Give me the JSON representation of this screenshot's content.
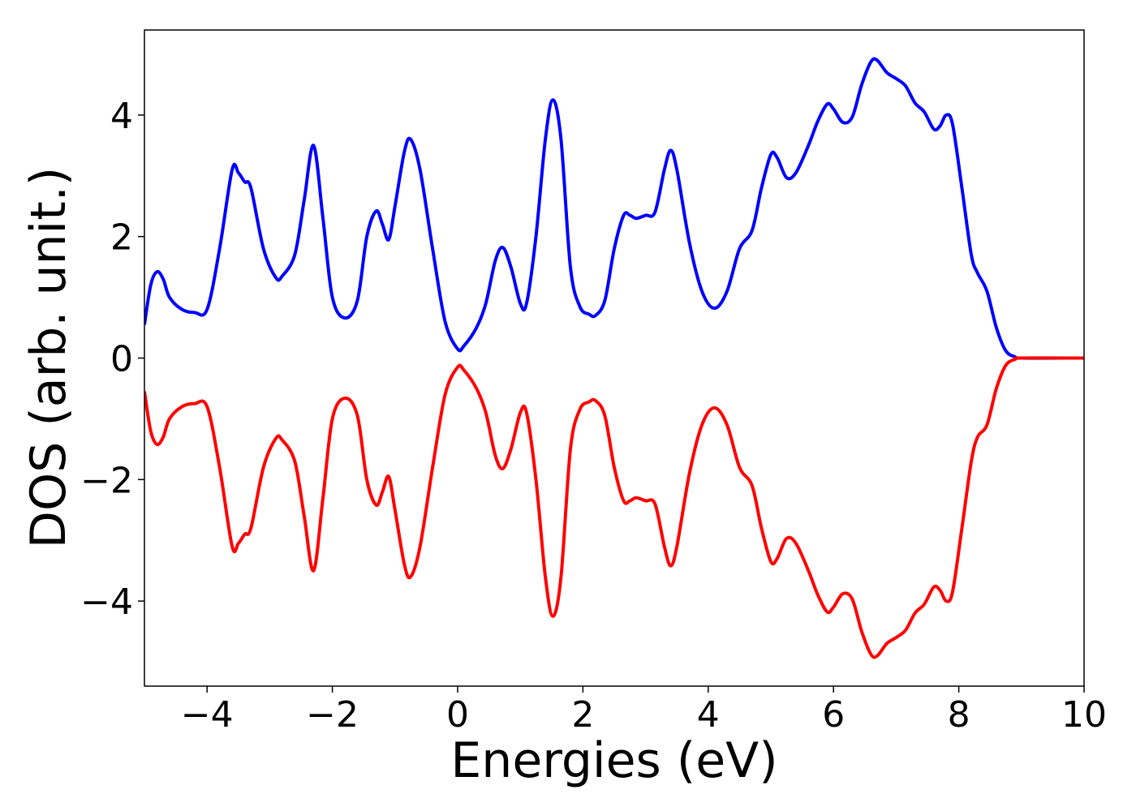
{
  "chart_data": {
    "type": "line",
    "xlabel": "Energies (eV)",
    "ylabel": "DOS (arb. unit.)",
    "x": [
      -5.0,
      -4.9,
      -4.8,
      -4.7,
      -4.6,
      -4.4,
      -4.2,
      -4.0,
      -3.8,
      -3.6,
      -3.5,
      -3.4,
      -3.3,
      -3.1,
      -2.9,
      -2.8,
      -2.6,
      -2.45,
      -2.3,
      -2.15,
      -2.0,
      -1.8,
      -1.6,
      -1.45,
      -1.3,
      -1.2,
      -1.1,
      -1.0,
      -0.85,
      -0.75,
      -0.6,
      -0.4,
      -0.2,
      0.0,
      0.1,
      0.3,
      0.45,
      0.6,
      0.72,
      0.85,
      1.0,
      1.1,
      1.25,
      1.4,
      1.52,
      1.65,
      1.8,
      1.95,
      2.1,
      2.2,
      2.35,
      2.5,
      2.65,
      2.75,
      2.85,
      3.0,
      3.15,
      3.3,
      3.4,
      3.5,
      3.7,
      3.9,
      4.1,
      4.3,
      4.5,
      4.7,
      4.85,
      5.0,
      5.1,
      5.25,
      5.4,
      5.6,
      5.75,
      5.9,
      6.0,
      6.15,
      6.3,
      6.45,
      6.6,
      6.7,
      6.85,
      7.0,
      7.15,
      7.3,
      7.45,
      7.6,
      7.7,
      7.8,
      7.9,
      8.05,
      8.2,
      8.3,
      8.45,
      8.6,
      8.75,
      8.9,
      9.0,
      10.0
    ],
    "series": [
      {
        "color": "#0000ff",
        "values": [
          0.55,
          1.2,
          1.42,
          1.3,
          1.0,
          0.8,
          0.75,
          0.8,
          1.8,
          3.1,
          3.05,
          2.9,
          2.8,
          1.8,
          1.32,
          1.35,
          1.7,
          2.6,
          3.5,
          2.3,
          1.0,
          0.66,
          0.95,
          2.0,
          2.42,
          2.2,
          1.95,
          2.5,
          3.4,
          3.6,
          3.1,
          1.8,
          0.6,
          0.15,
          0.2,
          0.5,
          0.9,
          1.6,
          1.82,
          1.5,
          0.9,
          0.9,
          2.0,
          3.6,
          4.25,
          3.6,
          1.5,
          0.85,
          0.72,
          0.7,
          0.95,
          1.8,
          2.35,
          2.35,
          2.3,
          2.35,
          2.4,
          3.1,
          3.42,
          3.1,
          1.9,
          1.1,
          0.82,
          1.1,
          1.8,
          2.1,
          2.8,
          3.35,
          3.3,
          2.97,
          3.05,
          3.5,
          3.9,
          4.18,
          4.1,
          3.88,
          3.97,
          4.5,
          4.88,
          4.9,
          4.7,
          4.6,
          4.48,
          4.2,
          4.05,
          3.77,
          3.82,
          4.0,
          3.85,
          2.8,
          1.7,
          1.4,
          1.1,
          0.5,
          0.12,
          0.02,
          0.0,
          0.0
        ]
      },
      {
        "color": "#ff0000",
        "values": [
          -0.55,
          -1.2,
          -1.42,
          -1.3,
          -1.0,
          -0.8,
          -0.75,
          -0.8,
          -1.8,
          -3.1,
          -3.05,
          -2.9,
          -2.8,
          -1.8,
          -1.32,
          -1.35,
          -1.7,
          -2.6,
          -3.5,
          -2.3,
          -1.0,
          -0.66,
          -0.95,
          -2.0,
          -2.42,
          -2.2,
          -1.95,
          -2.5,
          -3.4,
          -3.6,
          -3.1,
          -1.8,
          -0.6,
          -0.15,
          -0.2,
          -0.5,
          -0.9,
          -1.6,
          -1.82,
          -1.5,
          -0.9,
          -0.9,
          -2.0,
          -3.6,
          -4.25,
          -3.6,
          -1.5,
          -0.85,
          -0.72,
          -0.7,
          -0.95,
          -1.8,
          -2.35,
          -2.35,
          -2.3,
          -2.35,
          -2.4,
          -3.1,
          -3.42,
          -3.1,
          -1.9,
          -1.1,
          -0.82,
          -1.1,
          -1.8,
          -2.1,
          -2.8,
          -3.35,
          -3.3,
          -2.97,
          -3.05,
          -3.5,
          -3.9,
          -4.18,
          -4.1,
          -3.88,
          -3.97,
          -4.5,
          -4.88,
          -4.9,
          -4.7,
          -4.6,
          -4.48,
          -4.2,
          -4.05,
          -3.77,
          -3.82,
          -4.0,
          -3.85,
          -2.8,
          -1.7,
          -1.3,
          -1.1,
          -0.5,
          -0.12,
          -0.02,
          0.0,
          0.0
        ]
      }
    ],
    "xlim": [
      -5,
      10
    ],
    "xticks": [
      {
        "value": -4,
        "label": "−4"
      },
      {
        "value": -2,
        "label": "−2"
      },
      0,
      2,
      4,
      6,
      8,
      10
    ],
    "ylim": [
      -5.4,
      5.4
    ],
    "yticks": [
      {
        "value": -4,
        "label": "−4"
      },
      {
        "value": -2,
        "label": "−2"
      },
      0,
      2,
      4
    ]
  }
}
